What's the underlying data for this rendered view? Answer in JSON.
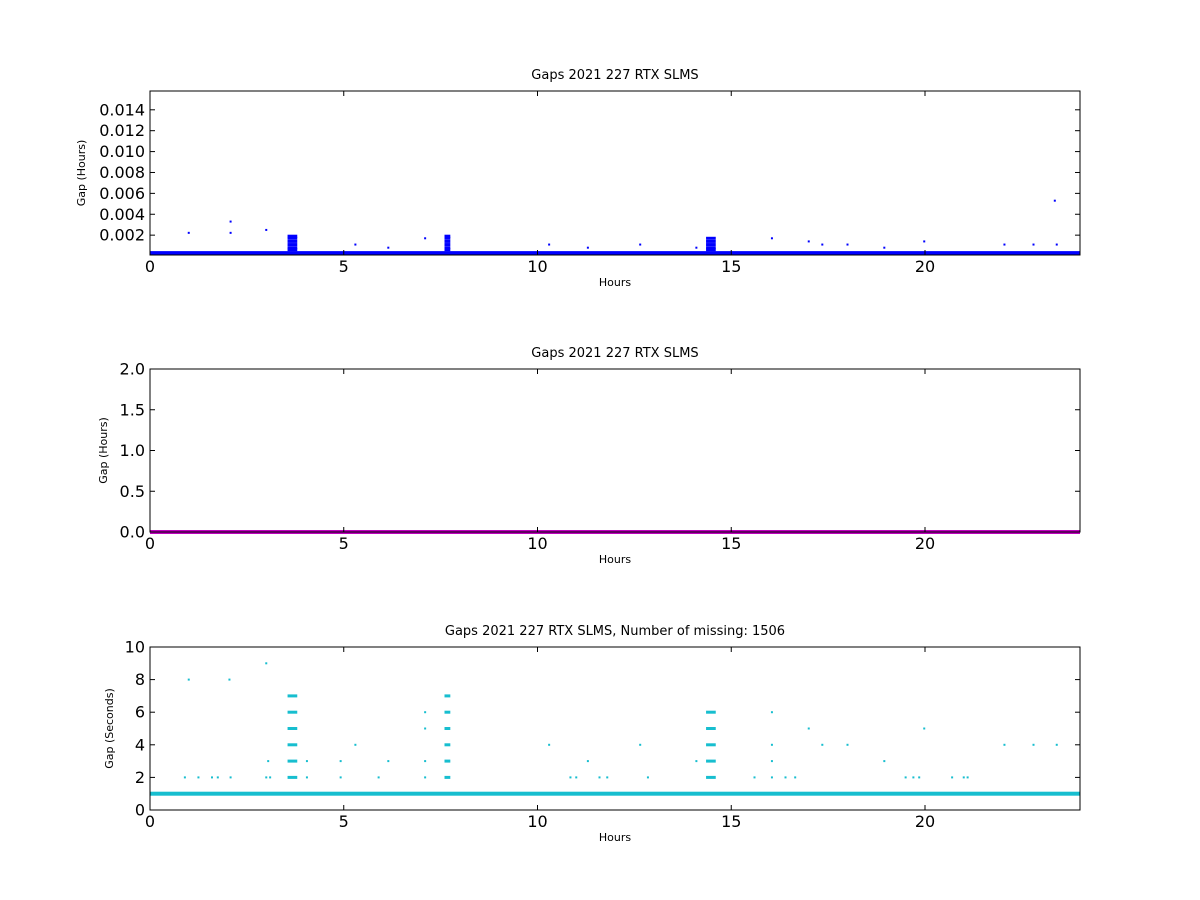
{
  "chart_data": [
    {
      "type": "scatter",
      "title": "Gaps 2021 227 RTX  SLMS",
      "xlabel": "Hours",
      "ylabel": "Gap (Hours)",
      "xlim": [
        0,
        24
      ],
      "ylim": [
        0.0001,
        0.0158
      ],
      "xticks": [
        0,
        5,
        10,
        15,
        20
      ],
      "xtick_labels": [
        "0",
        "5",
        "10",
        "15",
        "20"
      ],
      "yticks": [
        0.002,
        0.004,
        0.006,
        0.008,
        0.01,
        0.012,
        0.014
      ],
      "ytick_labels": [
        "0.002",
        "0.004",
        "0.006",
        "0.008",
        "0.010",
        "0.012",
        "0.014"
      ],
      "grid": false,
      "marker_color": "#0000ff",
      "baseline_value": 0.00028,
      "series": [
        {
          "points": [
            [
              1.0,
              0.00222
            ],
            [
              2.08,
              0.00222
            ],
            [
              2.08,
              0.0033
            ],
            [
              3.0,
              0.0025
            ],
            [
              5.3,
              0.0011
            ],
            [
              6.15,
              0.0008
            ],
            [
              7.1,
              0.0017
            ],
            [
              10.3,
              0.0011
            ],
            [
              11.3,
              0.0008
            ],
            [
              12.65,
              0.0011
            ],
            [
              14.1,
              0.0008
            ],
            [
              16.05,
              0.0017
            ],
            [
              17.0,
              0.0014
            ],
            [
              17.35,
              0.0011
            ],
            [
              18.0,
              0.0011
            ],
            [
              18.95,
              0.0008
            ],
            [
              19.98,
              0.0014
            ],
            [
              22.05,
              0.0011
            ],
            [
              22.8,
              0.0011
            ],
            [
              23.35,
              0.0053
            ],
            [
              23.4,
              0.0011
            ]
          ],
          "clusters": [
            {
              "x_range": [
                3.55,
                3.8
              ],
              "values": [
                0.0006,
                0.0008,
                0.0011,
                0.0014,
                0.0017,
                0.0019
              ]
            },
            {
              "x_range": [
                7.6,
                7.75
              ],
              "values": [
                0.0006,
                0.0008,
                0.0011,
                0.0014,
                0.0017,
                0.0019
              ]
            },
            {
              "x_range": [
                14.35,
                14.6
              ],
              "values": [
                0.0006,
                0.0008,
                0.0011,
                0.0014,
                0.0017
              ]
            }
          ]
        }
      ]
    },
    {
      "type": "scatter",
      "title": "Gaps 2021 227 RTX  SLMS",
      "xlabel": "Hours",
      "ylabel": "Gap (Hours)",
      "xlim": [
        0,
        24
      ],
      "ylim": [
        0,
        2.0
      ],
      "xticks": [
        0,
        5,
        10,
        15,
        20
      ],
      "xtick_labels": [
        "0",
        "5",
        "10",
        "15",
        "20"
      ],
      "yticks": [
        0.0,
        0.5,
        1.0,
        1.5,
        2.0
      ],
      "ytick_labels": [
        "0.0",
        "0.5",
        "1.0",
        "1.5",
        "2.0"
      ],
      "grid": false,
      "marker_color": "#bf00bf",
      "baseline_value": 0.0
    },
    {
      "type": "scatter",
      "title": "Gaps 2021 227 RTX  SLMS, Number of missing: 1506",
      "xlabel": "Hours",
      "ylabel": "Gap (Seconds)",
      "xlim": [
        0,
        24
      ],
      "ylim": [
        0,
        10
      ],
      "xticks": [
        0,
        5,
        10,
        15,
        20
      ],
      "xtick_labels": [
        "0",
        "5",
        "10",
        "15",
        "20"
      ],
      "yticks": [
        0,
        2,
        4,
        6,
        8,
        10
      ],
      "ytick_labels": [
        "0",
        "2",
        "4",
        "6",
        "8",
        "10"
      ],
      "grid": false,
      "marker_color": "#17becf",
      "baseline_value": 1.0,
      "series": [
        {
          "points": [
            [
              0.9,
              2
            ],
            [
              1.0,
              8
            ],
            [
              1.25,
              2
            ],
            [
              1.6,
              2
            ],
            [
              1.75,
              2
            ],
            [
              2.05,
              8
            ],
            [
              2.08,
              2
            ],
            [
              3.0,
              9
            ],
            [
              3.0,
              2
            ],
            [
              3.1,
              2
            ],
            [
              3.05,
              3
            ],
            [
              4.05,
              3
            ],
            [
              4.05,
              2
            ],
            [
              4.92,
              3
            ],
            [
              4.92,
              2
            ],
            [
              5.3,
              4
            ],
            [
              5.9,
              2
            ],
            [
              6.15,
              3
            ],
            [
              7.1,
              6
            ],
            [
              7.1,
              5
            ],
            [
              7.1,
              3
            ],
            [
              7.1,
              2
            ],
            [
              10.3,
              4
            ],
            [
              10.85,
              2
            ],
            [
              11.0,
              2
            ],
            [
              11.3,
              3
            ],
            [
              11.6,
              2
            ],
            [
              11.8,
              2
            ],
            [
              12.65,
              4
            ],
            [
              12.85,
              2
            ],
            [
              14.1,
              3
            ],
            [
              15.6,
              2
            ],
            [
              16.05,
              6
            ],
            [
              16.05,
              4
            ],
            [
              16.05,
              3
            ],
            [
              16.05,
              2
            ],
            [
              16.4,
              2
            ],
            [
              16.65,
              2
            ],
            [
              17.0,
              5
            ],
            [
              17.35,
              4
            ],
            [
              18.0,
              4
            ],
            [
              18.95,
              3
            ],
            [
              19.5,
              2
            ],
            [
              19.7,
              2
            ],
            [
              19.85,
              2
            ],
            [
              19.98,
              5
            ],
            [
              20.7,
              2
            ],
            [
              21.0,
              2
            ],
            [
              21.1,
              2
            ],
            [
              22.05,
              4
            ],
            [
              22.8,
              4
            ],
            [
              23.4,
              4
            ]
          ],
          "clusters": [
            {
              "x_range": [
                3.55,
                3.8
              ],
              "values": [
                2,
                3,
                4,
                5,
                6,
                7
              ]
            },
            {
              "x_range": [
                7.6,
                7.75
              ],
              "values": [
                2,
                3,
                4,
                5,
                6,
                7
              ]
            },
            {
              "x_range": [
                14.35,
                14.6
              ],
              "values": [
                2,
                3,
                4,
                5,
                6
              ]
            }
          ]
        }
      ]
    }
  ]
}
